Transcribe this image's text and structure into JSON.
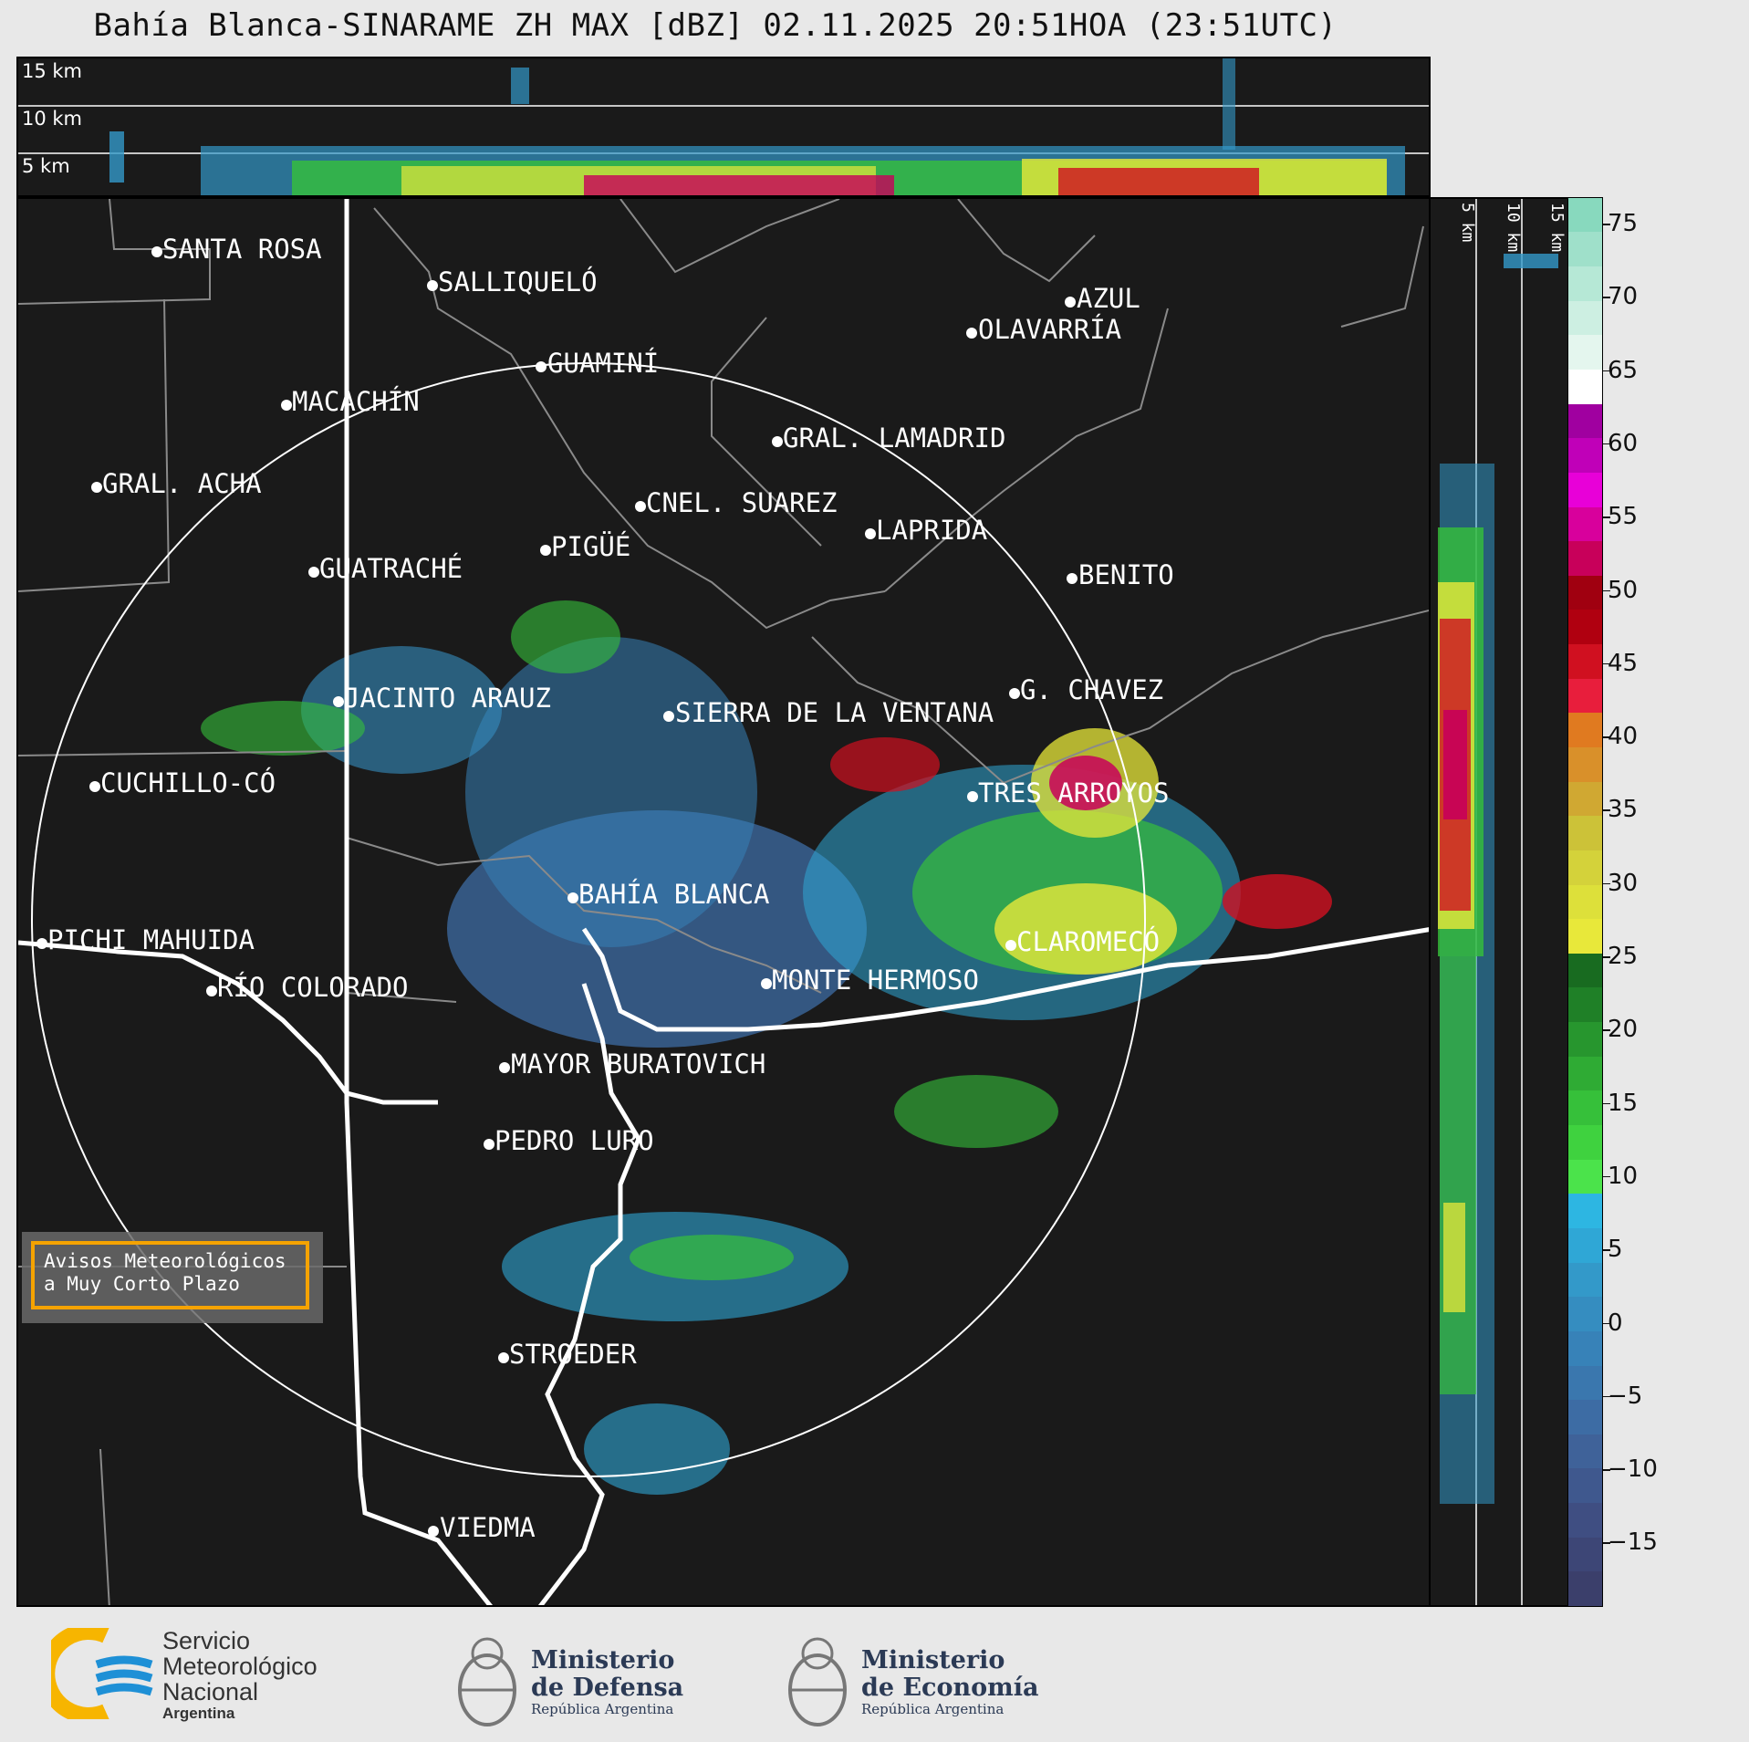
{
  "title": "Bahía Blanca-SINARAME ZH MAX [dBZ] 02.11.2025 20:51HOA (23:51UTC)",
  "height_labels": [
    "15 km",
    "10 km",
    "5 km"
  ],
  "cities": [
    {
      "name": "SANTA ROSA"
    },
    {
      "name": "SALLIQUELÓ"
    },
    {
      "name": "AZUL"
    },
    {
      "name": "OLAVARRÍA"
    },
    {
      "name": "GUAMINÍ"
    },
    {
      "name": "MACACHÍN"
    },
    {
      "name": "GRAL. LAMADRID"
    },
    {
      "name": "GRAL. ACHA"
    },
    {
      "name": "CNEL. SUAREZ"
    },
    {
      "name": "LAPRIDA"
    },
    {
      "name": "PIGÜÉ"
    },
    {
      "name": "GUATRACHÉ"
    },
    {
      "name": "BENITO"
    },
    {
      "name": "G. CHAVEZ"
    },
    {
      "name": "JACINTO ARAUZ"
    },
    {
      "name": "SIERRA DE LA VENTANA"
    },
    {
      "name": "CUCHILLO-CÓ"
    },
    {
      "name": "TRES ARROYOS"
    },
    {
      "name": "BAHÍA BLANCA"
    },
    {
      "name": "PICHI MAHUIDA"
    },
    {
      "name": "CLAROMECÓ"
    },
    {
      "name": "MONTE HERMOSO"
    },
    {
      "name": "RÍO COLORADO"
    },
    {
      "name": "MAYOR BURATOVICH"
    },
    {
      "name": "PEDRO LURO"
    },
    {
      "name": "STROEDER"
    },
    {
      "name": "VIEDMA"
    }
  ],
  "colorbar": {
    "ticks": [
      "75",
      "70",
      "65",
      "60",
      "55",
      "50",
      "45",
      "40",
      "35",
      "30",
      "25",
      "20",
      "15",
      "10",
      "5",
      "0",
      "−5",
      "−10",
      "−15"
    ],
    "colors": [
      "#3b3f6b",
      "#3d4676",
      "#3f4e82",
      "#3f588e",
      "#3f6299",
      "#3d6ca4",
      "#3a77ae",
      "#3782b8",
      "#358dc0",
      "#3399c9",
      "#2fa7d6",
      "#2db6e2",
      "#4be34b",
      "#3fd23f",
      "#36c03a",
      "#2fab34",
      "#27962e",
      "#1f8027",
      "#186b20",
      "#e8e83a",
      "#dde03a",
      "#d4d23a",
      "#ccc238",
      "#d0a832",
      "#d9902a",
      "#e07a20",
      "#e81e3c",
      "#d01020",
      "#b00010",
      "#a00010",
      "#c8005a",
      "#d8009c",
      "#e800d8",
      "#c000b8",
      "#a000a0",
      "#ffffff",
      "#e4f6ee",
      "#cdefe2",
      "#b6e8d6",
      "#9fe0ca",
      "#88d9be"
    ]
  },
  "overlay_box": {
    "line1": "Avisos Meteorológicos",
    "line2": "a Muy Corto Plazo"
  },
  "logos": {
    "smn": {
      "line1": "Servicio",
      "line2": "Meteorológico",
      "line3": "Nacional",
      "line4": "Argentina"
    },
    "defensa": {
      "line1": "Ministerio",
      "line2": "de Defensa",
      "line3": "República Argentina"
    },
    "economia": {
      "line1": "Ministerio",
      "line2": "de Economía",
      "line3": "República Argentina"
    }
  },
  "colors": {
    "background": "#1a1a1a",
    "orange_box": "#f5a300",
    "smn_blue": "#1e90d6",
    "smn_yellow": "#f7b500"
  }
}
